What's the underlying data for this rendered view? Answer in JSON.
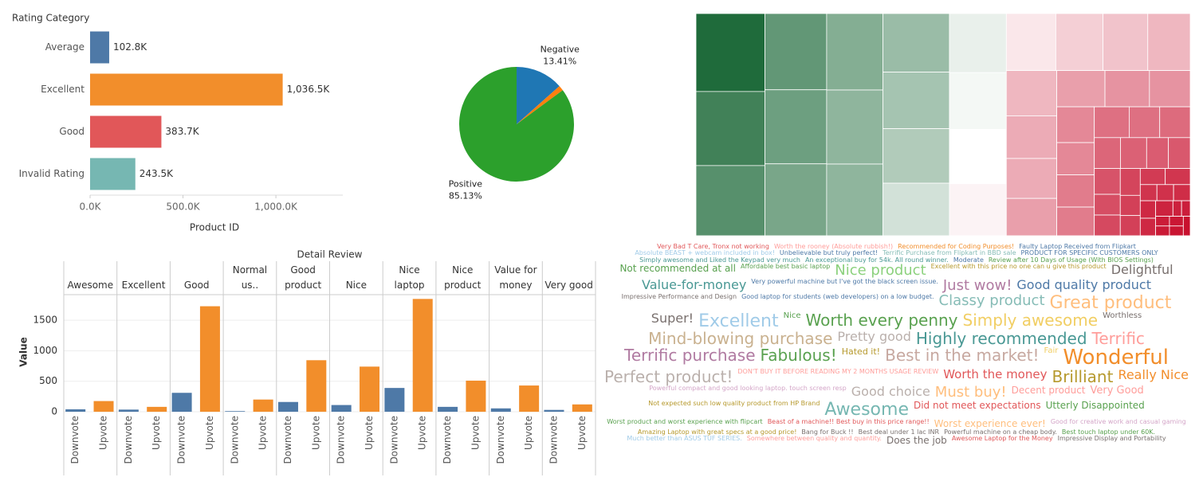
{
  "chart_data": [
    {
      "type": "bar",
      "orientation": "horizontal",
      "y_label": "Rating Category",
      "x_label": "Product ID",
      "categories": [
        "Average",
        "Excellent",
        "Good",
        "Invalid Rating"
      ],
      "values": [
        102800,
        1036500,
        383700,
        243500
      ],
      "value_labels": [
        "102.8K",
        "1,036.5K",
        "383.7K",
        "243.5K"
      ],
      "colors": [
        "#4e79a7",
        "#f28e2b",
        "#e15759",
        "#76b7b2"
      ],
      "xlim": [
        0,
        1360000
      ],
      "xticks": [
        {
          "value": 0,
          "label": "0.0K"
        },
        {
          "value": 500000,
          "label": "500.0K"
        },
        {
          "value": 1000000,
          "label": "1,000.0K"
        }
      ]
    },
    {
      "type": "pie",
      "categories": [
        "Negative",
        null,
        "Positive"
      ],
      "values": [
        13.41,
        1.46,
        85.13
      ],
      "value_labels": [
        "13.41%",
        null,
        "85.13%"
      ],
      "colors": [
        "#1f77b4",
        "#ff7f0e",
        "#2ca02c"
      ]
    },
    {
      "type": "treemap",
      "values": [
        40,
        38,
        36,
        35,
        34,
        33,
        32,
        31,
        30,
        29,
        28,
        27,
        26,
        25,
        24,
        23,
        22,
        21,
        20,
        19,
        18,
        17,
        16,
        15,
        14,
        13,
        12,
        11,
        10,
        9,
        9,
        8,
        8,
        7,
        7,
        6,
        6,
        5,
        5,
        5,
        4,
        4,
        4,
        3,
        3,
        3,
        3,
        2,
        2,
        2,
        2,
        2,
        2,
        1,
        1,
        1,
        1,
        1,
        1,
        1
      ],
      "color_values": [
        -1,
        -0.85,
        -0.75,
        -0.7,
        -0.65,
        -0.6,
        -0.55,
        -0.5,
        -0.5,
        -0.45,
        -0.4,
        -0.35,
        -0.2,
        -0.1,
        -0.05,
        0,
        0.05,
        0.1,
        0.2,
        0.25,
        0.3,
        0.3,
        0.35,
        0.35,
        0.4,
        0.4,
        0.45,
        0.45,
        0.5,
        0.5,
        0.55,
        0.55,
        0.6,
        0.6,
        0.62,
        0.64,
        0.66,
        0.68,
        0.7,
        0.72,
        0.74,
        0.76,
        0.78,
        0.8,
        0.8,
        0.82,
        0.84,
        0.85,
        0.86,
        0.88,
        0.9,
        0.9,
        0.92,
        0.93,
        0.94,
        0.95,
        0.96,
        0.97,
        0.98,
        1
      ],
      "color_scale": [
        "#1f6b3b",
        "#ffffff",
        "#c8102e"
      ]
    },
    {
      "type": "bar",
      "orientation": "vertical",
      "title": "Detail Review",
      "y_label": "Value",
      "categories": [
        "Awesome",
        "Excellent",
        "Good",
        "Good for Normal us..",
        "Good product",
        "Nice",
        "Nice laptop",
        "Nice product",
        "Value for money",
        "Very good"
      ],
      "series": [
        {
          "name": "Downvote",
          "color": "#4e79a7",
          "values": [
            40,
            35,
            310,
            10,
            160,
            110,
            390,
            80,
            55,
            30
          ]
        },
        {
          "name": "Upvote",
          "color": "#f28e2b",
          "values": [
            175,
            80,
            1730,
            200,
            845,
            740,
            1850,
            510,
            430,
            120
          ]
        }
      ],
      "ylim": [
        0,
        1920
      ],
      "yticks": [
        0,
        500,
        1000,
        1500
      ],
      "grid": true
    },
    {
      "type": "wordcloud",
      "words": [
        {
          "text": "Very Bad T Care, Tronx not working",
          "size": 8,
          "color": "#e15759"
        },
        {
          "text": "Worth the rooney (Absolute rubbish!)",
          "size": 8,
          "color": "#ff9d9a"
        },
        {
          "text": "Recommended for Coding Purposes!",
          "size": 8,
          "color": "#f28e2b"
        },
        {
          "text": "Faulty Laptop Received from Flipkart",
          "size": 8,
          "color": "#4e79a7"
        },
        {
          "text": "Absolute BEAST + webcam included in box!",
          "size": 8,
          "color": "#a0cbe8"
        },
        {
          "text": "Unbelievable but truly perfect!",
          "size": 8,
          "color": "#4e79a7"
        },
        {
          "text": "Terrific Purchase from Flipkart in BBD sale",
          "size": 8,
          "color": "#86bcb6"
        },
        {
          "text": "PRODUCT FOR SPECIFIC CUSTOMERS ONLY",
          "size": 8,
          "color": "#4e79a7"
        },
        {
          "text": "Simply awesome and Liked the Keypad very much",
          "size": 8,
          "color": "#499894"
        },
        {
          "text": "An exceptional buy for 54k. All round winner.",
          "size": 8,
          "color": "#499894"
        },
        {
          "text": "Moderate",
          "size": 8,
          "color": "#4e79a7"
        },
        {
          "text": "Review after 10 Days of Usage (With BIOS Settings)",
          "size": 8,
          "color": "#59a14f"
        },
        {
          "text": "Not recommended at all",
          "size": 12,
          "color": "#59a14f"
        },
        {
          "text": "Affordable best basic laptop",
          "size": 8,
          "color": "#59a14f"
        },
        {
          "text": "Nice product",
          "size": 18,
          "color": "#8cd17d"
        },
        {
          "text": "Excellent with this price no one can u give this product",
          "size": 8,
          "color": "#b6992d"
        },
        {
          "text": "Delightful",
          "size": 16,
          "color": "#79706e"
        },
        {
          "text": "Value-for-money",
          "size": 16,
          "color": "#499894"
        },
        {
          "text": "Very powerful machine but I've got the black screen issue.",
          "size": 8,
          "color": "#4e79a7"
        },
        {
          "text": "Just wow!",
          "size": 18,
          "color": "#b07aa1"
        },
        {
          "text": "Good quality product",
          "size": 16,
          "color": "#4e79a7"
        },
        {
          "text": "Impressive Performance and Design",
          "size": 8,
          "color": "#79706e"
        },
        {
          "text": "Good laptop for students (web developers) on a low budget.",
          "size": 8,
          "color": "#4e79a7"
        },
        {
          "text": "Classy product",
          "size": 18,
          "color": "#86bcb6"
        },
        {
          "text": "Great product",
          "size": 22,
          "color": "#ffbe7d"
        },
        {
          "text": "Super!",
          "size": 16,
          "color": "#79706e"
        },
        {
          "text": "Excellent",
          "size": 22,
          "color": "#a0cbe8"
        },
        {
          "text": "Nice",
          "size": 10,
          "color": "#59a14f"
        },
        {
          "text": "Worth every penny",
          "size": 20,
          "color": "#59a14f"
        },
        {
          "text": "Simply awesome",
          "size": 20,
          "color": "#f1ce63"
        },
        {
          "text": "Worthless",
          "size": 10,
          "color": "#79706e"
        },
        {
          "text": "Mind-blowing purchase",
          "size": 20,
          "color": "#c9b18f"
        },
        {
          "text": "Pretty good",
          "size": 16,
          "color": "#bab0ac"
        },
        {
          "text": "Highly recommended",
          "size": 20,
          "color": "#499894"
        },
        {
          "text": "Terrific",
          "size": 20,
          "color": "#ff9d9a"
        },
        {
          "text": "Terrific purchase",
          "size": 20,
          "color": "#b07aa1"
        },
        {
          "text": "Fabulous!",
          "size": 20,
          "color": "#59a14f"
        },
        {
          "text": "Hated it!",
          "size": 11,
          "color": "#b6992d"
        },
        {
          "text": "Best in the market!",
          "size": 20,
          "color": "#c7a8a0"
        },
        {
          "text": "Fair",
          "size": 10,
          "color": "#f1ce63"
        },
        {
          "text": "Wonderful",
          "size": 26,
          "color": "#f28e2b"
        },
        {
          "text": "Perfect product!",
          "size": 20,
          "color": "#bab0ac"
        },
        {
          "text": "DON'T BUY IT BEFORE READING MY 2 MONTHS USAGE REVIEW",
          "size": 8,
          "color": "#ff9d9a"
        },
        {
          "text": "Worth the money",
          "size": 15,
          "color": "#e15759"
        },
        {
          "text": "Brilliant",
          "size": 20,
          "color": "#b6992d"
        },
        {
          "text": "Really Nice",
          "size": 16,
          "color": "#f28e2b"
        },
        {
          "text": "Powerful compact and good looking laptop. touch screen resp",
          "size": 8,
          "color": "#d4a6c8"
        },
        {
          "text": "Good choice",
          "size": 16,
          "color": "#bab0ac"
        },
        {
          "text": "Must buy!",
          "size": 18,
          "color": "#ffbe7d"
        },
        {
          "text": "Decent product",
          "size": 12,
          "color": "#ff9d9a"
        },
        {
          "text": "Very Good",
          "size": 13,
          "color": "#ff9d9a"
        },
        {
          "text": "Not expected such low quality product from HP Brand",
          "size": 8,
          "color": "#b6992d"
        },
        {
          "text": "Awesome",
          "size": 22,
          "color": "#76b7b2"
        },
        {
          "text": "Did not meet expectations",
          "size": 12,
          "color": "#e15759"
        },
        {
          "text": "Utterly Disappointed",
          "size": 12,
          "color": "#59a14f"
        },
        {
          "text": "Worst product and worst experience with flipcart",
          "size": 8,
          "color": "#59a14f"
        },
        {
          "text": "Beast of a machine!! Best buy in this price range!!",
          "size": 8,
          "color": "#e15759"
        },
        {
          "text": "Worst experience ever!",
          "size": 12,
          "color": "#ffbe7d"
        },
        {
          "text": "Good for creative work and casual gaming",
          "size": 8,
          "color": "#d4a6c8"
        },
        {
          "text": "Amazing Laptop with great specs at a good price!",
          "size": 8,
          "color": "#b6992d"
        },
        {
          "text": "Bang for Buck !!",
          "size": 8,
          "color": "#79706e"
        },
        {
          "text": "Best deal under 1 lac INR",
          "size": 8,
          "color": "#79706e"
        },
        {
          "text": "Powerful machine on a cheap body.",
          "size": 8,
          "color": "#79706e"
        },
        {
          "text": "Best touch laptop under 60K.",
          "size": 8,
          "color": "#59a14f"
        },
        {
          "text": "Much better than ASUS TUF SERIES.",
          "size": 8,
          "color": "#a0cbe8"
        },
        {
          "text": "Somewhere between quality and quantity.",
          "size": 8,
          "color": "#ff9d9a"
        },
        {
          "text": "Does the job",
          "size": 12,
          "color": "#79706e"
        },
        {
          "text": "Awesome Laptop for the Money",
          "size": 8,
          "color": "#e15759"
        },
        {
          "text": "Impressive Display and Portability",
          "size": 8,
          "color": "#79706e"
        }
      ]
    }
  ]
}
